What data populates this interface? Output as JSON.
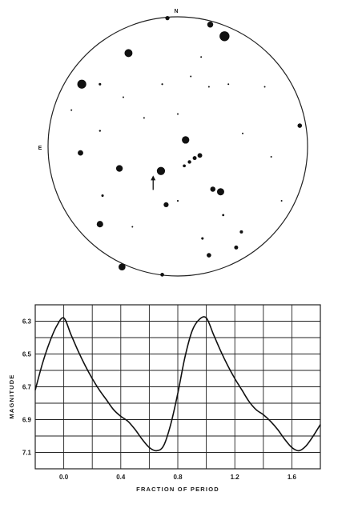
{
  "star_field": {
    "compass": {
      "north": "N",
      "east": "E"
    },
    "stars": [
      {
        "ra": 0.36,
        "dec": 0.85,
        "mag": 5.2
      },
      {
        "ra": -0.38,
        "dec": 0.72,
        "mag": 6.0
      },
      {
        "ra": -0.08,
        "dec": 0.99,
        "mag": 7.5
      },
      {
        "ra": 0.25,
        "dec": 0.94,
        "mag": 6.8
      },
      {
        "ra": -0.74,
        "dec": 0.48,
        "mag": 5.6
      },
      {
        "ra": -0.6,
        "dec": 0.48,
        "mag": 8.2
      },
      {
        "ra": 0.18,
        "dec": 0.69,
        "mag": 8.6
      },
      {
        "ra": 0.1,
        "dec": 0.54,
        "mag": 8.8
      },
      {
        "ra": 0.24,
        "dec": 0.46,
        "mag": 8.8
      },
      {
        "ra": 0.39,
        "dec": 0.48,
        "mag": 8.9
      },
      {
        "ra": 0.67,
        "dec": 0.46,
        "mag": 8.9
      },
      {
        "ra": -0.12,
        "dec": 0.48,
        "mag": 8.5
      },
      {
        "ra": -0.42,
        "dec": 0.38,
        "mag": 8.9
      },
      {
        "ra": 0.94,
        "dec": 0.16,
        "mag": 7.4
      },
      {
        "ra": 0.06,
        "dec": 0.05,
        "mag": 6.2
      },
      {
        "ra": -0.13,
        "dec": -0.19,
        "mag": 5.9
      },
      {
        "ra": 0.17,
        "dec": -0.07,
        "mag": 7.3
      },
      {
        "ra": 0.13,
        "dec": -0.09,
        "mag": 7.6
      },
      {
        "ra": 0.09,
        "dec": -0.12,
        "mag": 7.8
      },
      {
        "ra": 0.05,
        "dec": -0.15,
        "mag": 8.0
      },
      {
        "ra": -0.45,
        "dec": -0.17,
        "mag": 6.5
      },
      {
        "ra": -0.75,
        "dec": -0.05,
        "mag": 7.0
      },
      {
        "ra": 0.33,
        "dec": -0.35,
        "mag": 6.3
      },
      {
        "ra": 0.27,
        "dec": -0.33,
        "mag": 7.1
      },
      {
        "ra": -0.09,
        "dec": -0.45,
        "mag": 7.2
      },
      {
        "ra": -0.6,
        "dec": -0.6,
        "mag": 6.6
      },
      {
        "ra": -0.43,
        "dec": -0.93,
        "mag": 6.4
      },
      {
        "ra": 0.19,
        "dec": -0.71,
        "mag": 8.2
      },
      {
        "ra": 0.24,
        "dec": -0.84,
        "mag": 7.4
      },
      {
        "ra": 0.45,
        "dec": -0.78,
        "mag": 7.6
      },
      {
        "ra": 0.49,
        "dec": -0.66,
        "mag": 7.9
      },
      {
        "ra": -0.12,
        "dec": -0.99,
        "mag": 7.7
      },
      {
        "ra": -0.6,
        "dec": 0.12,
        "mag": 8.4
      },
      {
        "ra": -0.82,
        "dec": 0.28,
        "mag": 8.6
      },
      {
        "ra": -0.58,
        "dec": -0.38,
        "mag": 8.2
      },
      {
        "ra": 0.0,
        "dec": 0.25,
        "mag": 8.6
      },
      {
        "ra": -0.26,
        "dec": 0.22,
        "mag": 8.9
      },
      {
        "ra": 0.5,
        "dec": 0.1,
        "mag": 8.7
      },
      {
        "ra": 0.72,
        "dec": -0.08,
        "mag": 8.8
      },
      {
        "ra": 0.0,
        "dec": -0.42,
        "mag": 8.5
      },
      {
        "ra": 0.35,
        "dec": -0.53,
        "mag": 8.3
      },
      {
        "ra": 0.8,
        "dec": -0.42,
        "mag": 8.8
      },
      {
        "ra": -0.35,
        "dec": -0.62,
        "mag": 8.7
      }
    ],
    "variable_star": {
      "ra": -0.19,
      "dec": -0.2
    }
  },
  "chart_data": {
    "type": "line",
    "xlabel": "FRACTION OF PERIOD",
    "ylabel": "MAGNITUDE",
    "xlim": [
      -0.2,
      1.8
    ],
    "ylim": [
      7.2,
      6.2
    ],
    "x_ticks": [
      0.0,
      0.4,
      0.8,
      1.2,
      1.6
    ],
    "x_tick_labels": [
      "0.0",
      "0.4",
      "0.8",
      "1.2",
      "1.6"
    ],
    "y_ticks": [
      6.3,
      6.5,
      6.7,
      6.9,
      7.1
    ],
    "y_tick_labels": [
      "6.3",
      "6.5",
      "6.7",
      "6.9",
      "7.1"
    ],
    "grid": true,
    "series": [
      {
        "x": [
          -0.2,
          -0.15,
          -0.1,
          -0.05,
          0.0,
          0.05,
          0.1,
          0.15,
          0.2,
          0.25,
          0.3,
          0.35,
          0.4,
          0.45,
          0.5,
          0.55,
          0.6,
          0.65,
          0.7,
          0.75,
          0.8,
          0.85,
          0.9,
          0.95,
          1.0,
          1.05,
          1.1,
          1.15,
          1.2,
          1.25,
          1.3,
          1.35,
          1.4,
          1.45,
          1.5,
          1.55,
          1.6,
          1.65,
          1.7,
          1.75,
          1.8
        ],
        "y": [
          6.72,
          6.56,
          6.43,
          6.33,
          6.28,
          6.38,
          6.48,
          6.57,
          6.65,
          6.72,
          6.78,
          6.84,
          6.88,
          6.91,
          6.96,
          7.02,
          7.07,
          7.09,
          7.06,
          6.93,
          6.74,
          6.52,
          6.36,
          6.29,
          6.28,
          6.38,
          6.48,
          6.57,
          6.65,
          6.72,
          6.79,
          6.84,
          6.87,
          6.91,
          6.96,
          7.02,
          7.07,
          7.09,
          7.06,
          7.0,
          6.93
        ]
      }
    ]
  }
}
